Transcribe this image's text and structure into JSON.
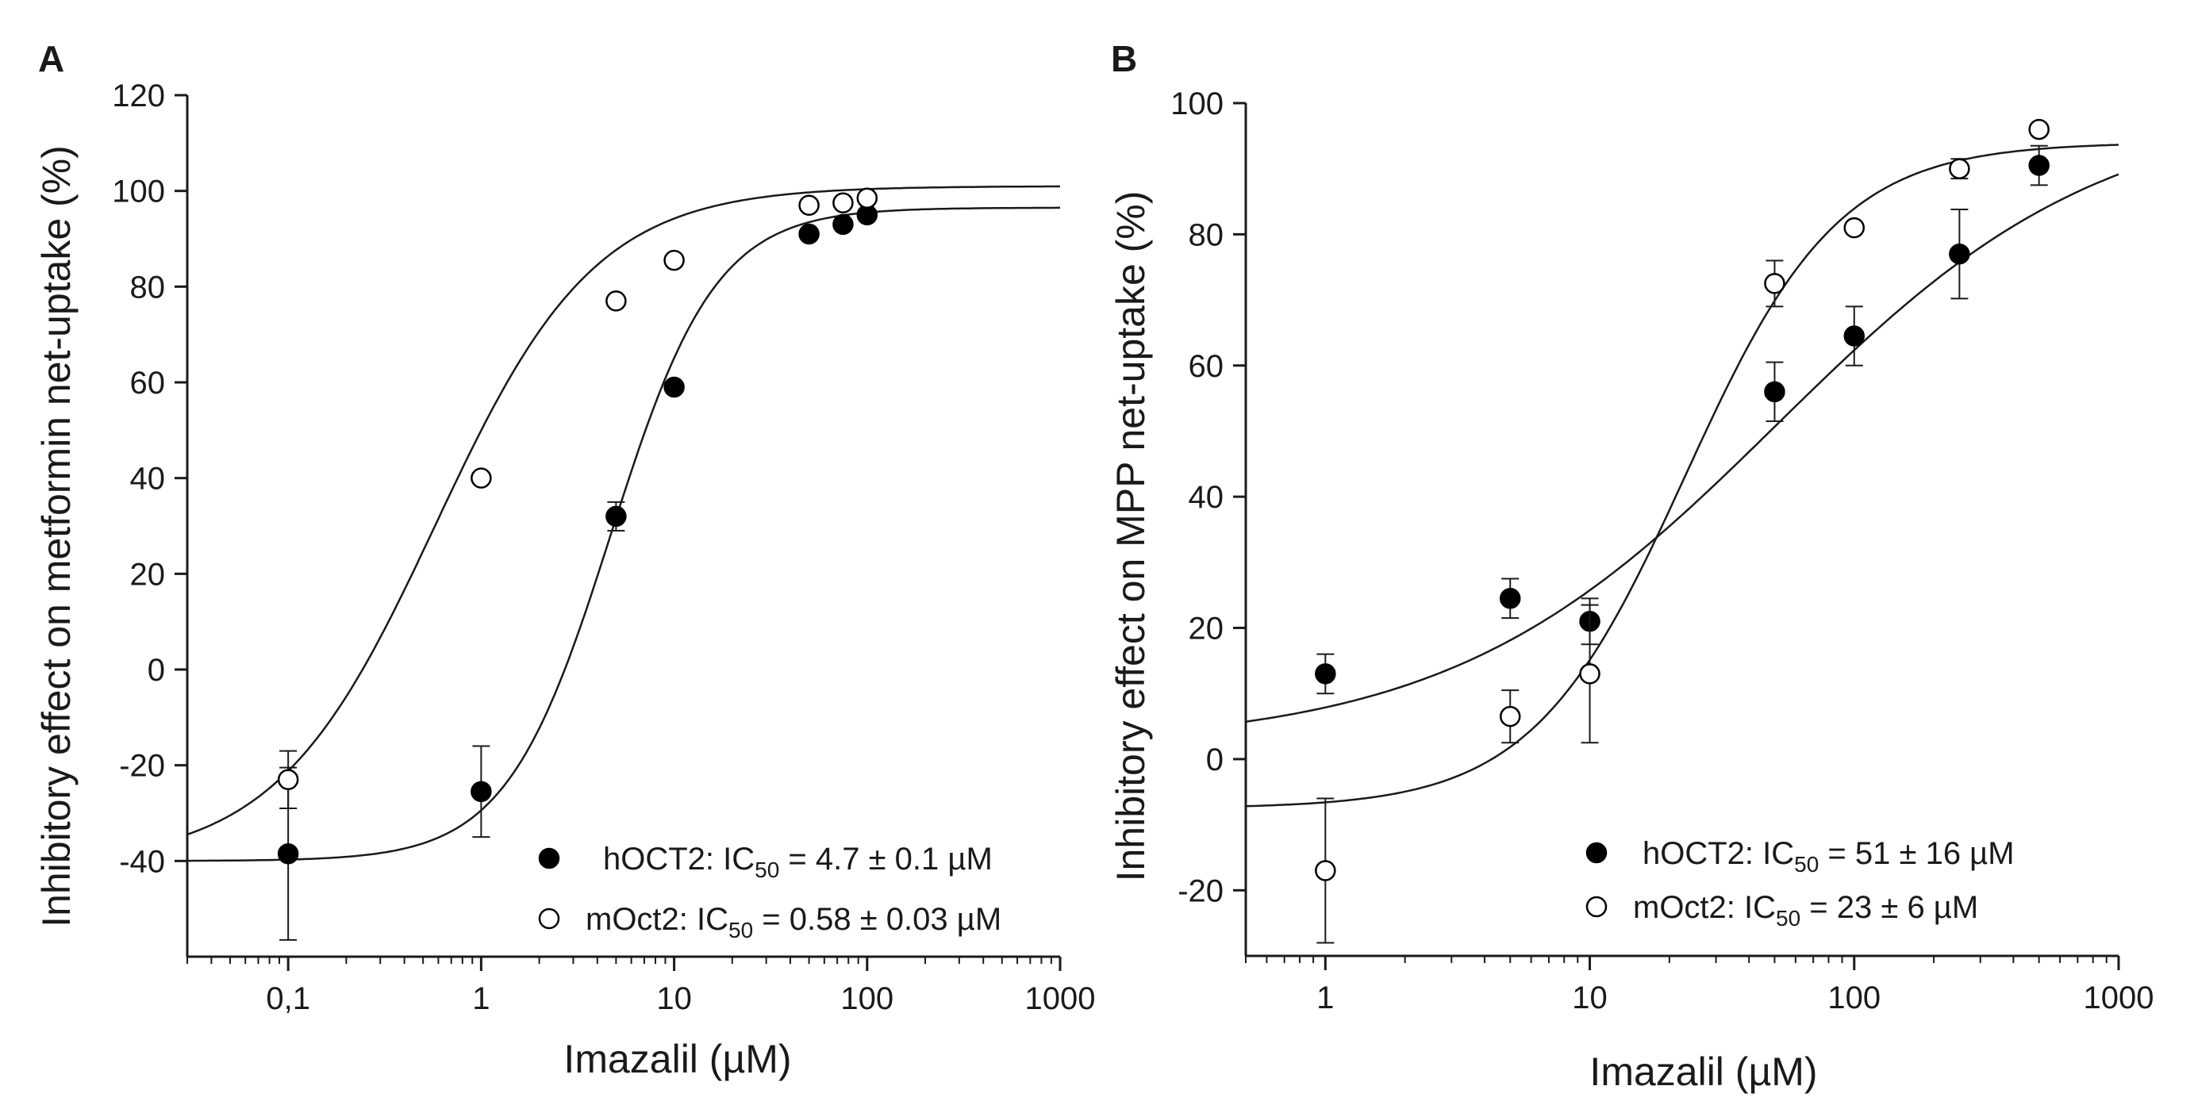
{
  "colors": {
    "axis": "#1a1a1a",
    "filled": "#000000",
    "open_fill": "#ffffff",
    "background": "#ffffff"
  },
  "chart_data": [
    {
      "panel": "A",
      "type": "scatter",
      "xscale": "log",
      "xlabel": "Imazalil (µM)",
      "ylabel": "Inhibitory effect on metformin net-uptake (%)",
      "xlim": [
        0.03,
        1000
      ],
      "ylim": [
        -60,
        120
      ],
      "xticks": [
        0.1,
        1,
        10,
        100,
        1000
      ],
      "xtick_labels": [
        "0,1",
        "1",
        "10",
        "100",
        "1000"
      ],
      "yticks": [
        -40,
        -20,
        0,
        20,
        40,
        60,
        80,
        100,
        120
      ],
      "ytick_labels": [
        "-40",
        "-20",
        "0",
        "20",
        "40",
        "60",
        "80",
        "100",
        "120"
      ],
      "legend_position": "bottom-right",
      "series": [
        {
          "name": "hOCT2",
          "legend_prefix": "hOCT2: IC",
          "legend_sub": "50",
          "legend_suffix": " = 4.7 ± 0.1 µM",
          "marker": "filled",
          "x": [
            0.1,
            1,
            5,
            10,
            50,
            75,
            100
          ],
          "y": [
            -38.5,
            -25.5,
            32,
            59,
            91,
            93,
            95
          ],
          "err": [
            18,
            9.5,
            3,
            1.5,
            1,
            1,
            1
          ],
          "fit": {
            "bottom": -40,
            "top": 96.5,
            "ic50": 4.7,
            "hill": 1.6
          }
        },
        {
          "name": "mOct2",
          "legend_prefix": "mOct2: IC",
          "legend_sub": "50",
          "legend_suffix": " = 0.58 ± 0.03 µM",
          "marker": "open",
          "x": [
            0.1,
            1,
            5,
            10,
            50,
            75,
            100
          ],
          "y": [
            -23,
            40,
            77,
            85.5,
            97,
            97.5,
            98.5
          ],
          "err": [
            6,
            1,
            1.5,
            1,
            1,
            1,
            1
          ],
          "fit": {
            "bottom": -40.5,
            "top": 101,
            "ic50": 0.58,
            "hill": 1.05
          }
        }
      ]
    },
    {
      "panel": "B",
      "type": "scatter",
      "xscale": "log",
      "xlabel": "Imazalil (µM)",
      "ylabel": "Inhibitory effect on MPP net-uptake (%)",
      "xlim": [
        0.5,
        1000
      ],
      "ylim": [
        -30,
        100
      ],
      "xticks": [
        1,
        10,
        100,
        1000
      ],
      "xtick_labels": [
        "1",
        "10",
        "100",
        "1000"
      ],
      "yticks": [
        -20,
        0,
        20,
        40,
        60,
        80,
        100
      ],
      "ytick_labels": [
        "-20",
        "0",
        "20",
        "40",
        "60",
        "80",
        "100"
      ],
      "legend_position": "bottom-right",
      "series": [
        {
          "name": "hOCT2",
          "legend_prefix": "hOCT2: IC",
          "legend_sub": "50",
          "legend_suffix": " = 51 ± 16 µM",
          "marker": "filled",
          "x": [
            1,
            5,
            10,
            50,
            100,
            250,
            500
          ],
          "y": [
            13,
            24.5,
            21,
            56,
            64.5,
            77,
            90.5
          ],
          "err": [
            3,
            3,
            3.5,
            4.5,
            4.5,
            6.8,
            3
          ],
          "fit": {
            "bottom": 2,
            "top": 100,
            "ic50": 51,
            "hill": 0.7
          }
        },
        {
          "name": "mOct2",
          "legend_prefix": "mOct2: IC",
          "legend_sub": "50",
          "legend_suffix": " = 23 ± 6 µM",
          "marker": "open",
          "x": [
            1,
            5,
            10,
            50,
            100,
            250,
            500
          ],
          "y": [
            -17,
            6.5,
            13,
            72.5,
            81,
            90,
            96
          ],
          "err": [
            11,
            4,
            10.5,
            3.5,
            1,
            1.5,
            1
          ],
          "fit": {
            "bottom": -7.5,
            "top": 94,
            "ic50": 23,
            "hill": 1.5
          }
        }
      ]
    }
  ]
}
